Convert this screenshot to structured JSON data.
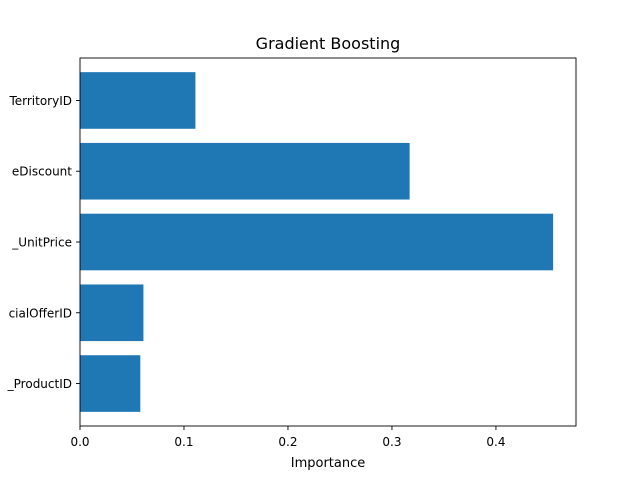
{
  "chart_data": {
    "type": "bar",
    "orientation": "horizontal",
    "title": "Gradient Boosting",
    "xlabel": "Importance",
    "ylabel": "",
    "categories": [
      "TerritoryID",
      "eDiscount",
      "_UnitPrice",
      "cialOfferID",
      "_ProductID"
    ],
    "values": [
      0.111,
      0.317,
      0.455,
      0.061,
      0.058
    ],
    "xlim": [
      0.0,
      0.477
    ],
    "xticks": [
      0.0,
      0.1,
      0.2,
      0.3,
      0.4
    ],
    "xtick_labels": [
      "0.0",
      "0.1",
      "0.2",
      "0.3",
      "0.4"
    ],
    "grid": false,
    "legend": "none",
    "bar_color": "#1f77b4"
  }
}
